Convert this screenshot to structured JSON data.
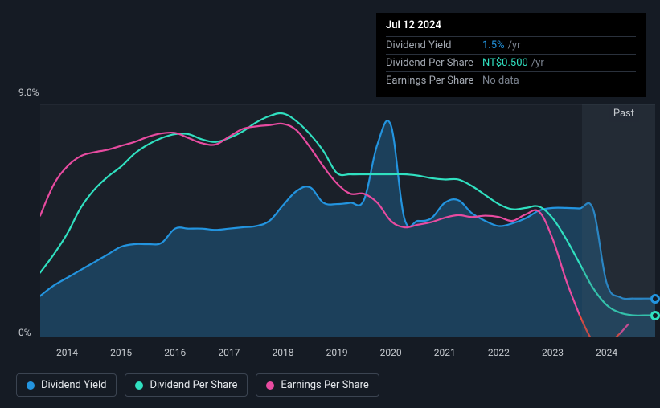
{
  "chart": {
    "type": "line-area",
    "background_color": "#151b24",
    "plot_background": "#1a2029",
    "grid_color": "#2a313c",
    "text_color": "#c5c9ce",
    "past_label": "Past",
    "y_axis": {
      "min": 0,
      "max": 9,
      "labels": [
        {
          "value": 0,
          "text": "0%"
        },
        {
          "value": 9,
          "text": "9.0%"
        }
      ]
    },
    "x_axis": {
      "min": 2013.5,
      "max": 2024.9,
      "ticks": [
        2014,
        2015,
        2016,
        2017,
        2018,
        2019,
        2020,
        2021,
        2022,
        2023,
        2024
      ]
    },
    "future_start_x": 2023.55,
    "series": [
      {
        "id": "dividend_yield",
        "label": "Dividend Yield",
        "color": "#2394df",
        "fill": true,
        "fill_opacity": 0.28,
        "line_width": 2.2,
        "data": [
          [
            2013.5,
            1.6
          ],
          [
            2013.75,
            2.0
          ],
          [
            2014.0,
            2.3
          ],
          [
            2014.25,
            2.6
          ],
          [
            2014.5,
            2.9
          ],
          [
            2014.75,
            3.2
          ],
          [
            2015.0,
            3.5
          ],
          [
            2015.25,
            3.6
          ],
          [
            2015.5,
            3.6
          ],
          [
            2015.75,
            3.65
          ],
          [
            2016.0,
            4.2
          ],
          [
            2016.25,
            4.2
          ],
          [
            2016.5,
            4.2
          ],
          [
            2016.75,
            4.15
          ],
          [
            2017.0,
            4.2
          ],
          [
            2017.25,
            4.25
          ],
          [
            2017.5,
            4.3
          ],
          [
            2017.75,
            4.5
          ],
          [
            2018.0,
            5.1
          ],
          [
            2018.25,
            5.65
          ],
          [
            2018.5,
            5.8
          ],
          [
            2018.75,
            5.2
          ],
          [
            2019.0,
            5.15
          ],
          [
            2019.25,
            5.2
          ],
          [
            2019.5,
            5.3
          ],
          [
            2019.75,
            7.45
          ],
          [
            2020.0,
            8.2
          ],
          [
            2020.25,
            4.6
          ],
          [
            2020.5,
            4.5
          ],
          [
            2020.75,
            4.6
          ],
          [
            2021.0,
            5.2
          ],
          [
            2021.25,
            5.3
          ],
          [
            2021.5,
            4.8
          ],
          [
            2021.75,
            4.5
          ],
          [
            2022.0,
            4.3
          ],
          [
            2022.25,
            4.4
          ],
          [
            2022.5,
            4.6
          ],
          [
            2022.75,
            4.9
          ],
          [
            2023.0,
            5.0
          ],
          [
            2023.25,
            5.0
          ],
          [
            2023.5,
            4.98
          ],
          [
            2023.75,
            4.95
          ],
          [
            2024.0,
            2.1
          ],
          [
            2024.25,
            1.55
          ],
          [
            2024.5,
            1.5
          ],
          [
            2024.7,
            1.5
          ],
          [
            2024.9,
            1.5
          ]
        ],
        "marker_x": 2024.9
      },
      {
        "id": "dividend_per_share",
        "label": "Dividend Per Share",
        "color": "#30e0c0",
        "fill": false,
        "line_width": 2.2,
        "data": [
          [
            2013.5,
            2.5
          ],
          [
            2013.75,
            3.2
          ],
          [
            2014.0,
            4.0
          ],
          [
            2014.25,
            5.0
          ],
          [
            2014.5,
            5.7
          ],
          [
            2014.75,
            6.2
          ],
          [
            2015.0,
            6.6
          ],
          [
            2015.25,
            7.1
          ],
          [
            2015.5,
            7.45
          ],
          [
            2015.75,
            7.7
          ],
          [
            2016.0,
            7.85
          ],
          [
            2016.25,
            7.85
          ],
          [
            2016.5,
            7.65
          ],
          [
            2016.75,
            7.55
          ],
          [
            2017.0,
            7.7
          ],
          [
            2017.25,
            7.95
          ],
          [
            2017.5,
            8.3
          ],
          [
            2017.75,
            8.55
          ],
          [
            2018.0,
            8.65
          ],
          [
            2018.25,
            8.35
          ],
          [
            2018.5,
            7.85
          ],
          [
            2018.75,
            7.2
          ],
          [
            2019.0,
            6.35
          ],
          [
            2019.25,
            6.3
          ],
          [
            2019.5,
            6.3
          ],
          [
            2019.75,
            6.3
          ],
          [
            2020.0,
            6.3
          ],
          [
            2020.25,
            6.3
          ],
          [
            2020.5,
            6.25
          ],
          [
            2020.75,
            6.15
          ],
          [
            2021.0,
            6.1
          ],
          [
            2021.25,
            6.1
          ],
          [
            2021.5,
            5.85
          ],
          [
            2021.75,
            5.5
          ],
          [
            2022.0,
            5.15
          ],
          [
            2022.25,
            4.95
          ],
          [
            2022.5,
            5.0
          ],
          [
            2022.75,
            5.05
          ],
          [
            2023.0,
            4.6
          ],
          [
            2023.25,
            3.8
          ],
          [
            2023.5,
            2.85
          ],
          [
            2023.75,
            1.9
          ],
          [
            2024.0,
            1.25
          ],
          [
            2024.25,
            0.95
          ],
          [
            2024.5,
            0.85
          ],
          [
            2024.7,
            0.85
          ],
          [
            2024.9,
            0.85
          ]
        ],
        "marker_x": 2024.9
      },
      {
        "id": "earnings_per_share",
        "label": "Earnings Per Share",
        "color": "#e84ba0",
        "fill": false,
        "line_width": 2.2,
        "data": [
          [
            2013.5,
            4.7
          ],
          [
            2013.75,
            5.9
          ],
          [
            2014.0,
            6.6
          ],
          [
            2014.25,
            7.0
          ],
          [
            2014.5,
            7.15
          ],
          [
            2014.75,
            7.25
          ],
          [
            2015.0,
            7.4
          ],
          [
            2015.25,
            7.55
          ],
          [
            2015.5,
            7.75
          ],
          [
            2015.75,
            7.88
          ],
          [
            2016.0,
            7.9
          ],
          [
            2016.25,
            7.7
          ],
          [
            2016.5,
            7.5
          ],
          [
            2016.75,
            7.45
          ],
          [
            2017.0,
            7.75
          ],
          [
            2017.25,
            8.05
          ],
          [
            2017.5,
            8.15
          ],
          [
            2017.75,
            8.2
          ],
          [
            2018.0,
            8.25
          ],
          [
            2018.25,
            8.0
          ],
          [
            2018.5,
            7.35
          ],
          [
            2018.75,
            6.6
          ],
          [
            2019.0,
            5.95
          ],
          [
            2019.25,
            5.55
          ],
          [
            2019.5,
            5.55
          ],
          [
            2019.75,
            5.2
          ],
          [
            2020.0,
            4.5
          ],
          [
            2020.25,
            4.25
          ],
          [
            2020.5,
            4.35
          ],
          [
            2020.75,
            4.45
          ],
          [
            2021.0,
            4.62
          ],
          [
            2021.25,
            4.72
          ],
          [
            2021.5,
            4.65
          ],
          [
            2021.75,
            4.7
          ],
          [
            2022.0,
            4.65
          ],
          [
            2022.25,
            4.5
          ],
          [
            2022.5,
            4.75
          ],
          [
            2022.75,
            4.85
          ],
          [
            2023.0,
            3.8
          ],
          [
            2023.25,
            2.2
          ],
          [
            2023.5,
            0.85
          ],
          [
            2023.75,
            -0.15
          ],
          [
            2024.0,
            -0.25
          ],
          [
            2024.25,
            0.15
          ],
          [
            2024.4,
            0.5
          ]
        ],
        "negative_color": "#ef4a3e"
      }
    ]
  },
  "tooltip": {
    "date": "Jul 12 2024",
    "rows": [
      {
        "label": "Dividend Yield",
        "value": "1.5%",
        "suffix": "/yr",
        "value_color": "#2394df"
      },
      {
        "label": "Dividend Per Share",
        "value": "NT$0.500",
        "suffix": "/yr",
        "value_color": "#30e0c0"
      },
      {
        "label": "Earnings Per Share",
        "value": "No data",
        "suffix": "",
        "value_color": "#7a828e"
      }
    ]
  },
  "legend": {
    "items": [
      {
        "id": "dividend_yield",
        "label": "Dividend Yield",
        "color": "#2394df"
      },
      {
        "id": "dividend_per_share",
        "label": "Dividend Per Share",
        "color": "#30e0c0"
      },
      {
        "id": "earnings_per_share",
        "label": "Earnings Per Share",
        "color": "#e84ba0"
      }
    ],
    "border_color": "#3b4451",
    "text_color": "#e4e7eb"
  }
}
